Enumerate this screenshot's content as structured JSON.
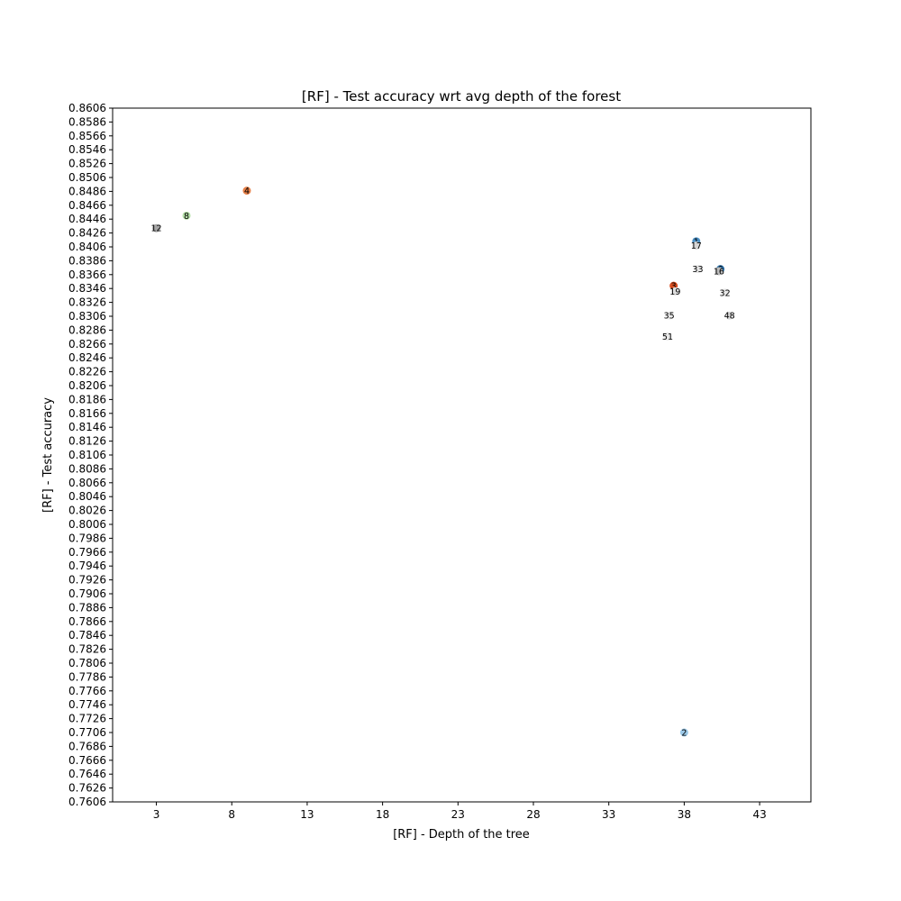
{
  "chart_data": {
    "type": "scatter",
    "title": "[RF] - Test accuracy wrt avg depth of the forest",
    "xlabel": "[RF] - Depth of the tree",
    "ylabel": "[RF] - Test accuracy",
    "xlim": [
      0.1,
      46.4
    ],
    "ylim": [
      0.7606,
      0.8606
    ],
    "xticks": [
      3,
      8,
      13,
      18,
      23,
      28,
      33,
      38,
      43
    ],
    "yticks": [
      0.7606,
      0.7626,
      0.7646,
      0.7666,
      0.7686,
      0.7706,
      0.7726,
      0.7746,
      0.7766,
      0.7786,
      0.7806,
      0.7826,
      0.7846,
      0.7866,
      0.7886,
      0.7906,
      0.7926,
      0.7946,
      0.7966,
      0.7986,
      0.8006,
      0.8026,
      0.8046,
      0.8066,
      0.8086,
      0.8106,
      0.8126,
      0.8146,
      0.8166,
      0.8186,
      0.8206,
      0.8226,
      0.8246,
      0.8266,
      0.8286,
      0.8306,
      0.8326,
      0.8346,
      0.8366,
      0.8386,
      0.8406,
      0.8426,
      0.8446,
      0.8466,
      0.8486,
      0.8506,
      0.8526,
      0.8546,
      0.8566,
      0.8586,
      0.8606
    ],
    "ytick_labels": [
      "0.7606",
      "0.7626",
      "0.7646",
      "0.7666",
      "0.7686",
      "0.7706",
      "0.7726",
      "0.7746",
      "0.7766",
      "0.7786",
      "0.7806",
      "0.7826",
      "0.7846",
      "0.7866",
      "0.7886",
      "0.7906",
      "0.7926",
      "0.7946",
      "0.7966",
      "0.7986",
      "0.8006",
      "0.8026",
      "0.8046",
      "0.8066",
      "0.8086",
      "0.8106",
      "0.8126",
      "0.8146",
      "0.8166",
      "0.8186",
      "0.8206",
      "0.8226",
      "0.8246",
      "0.8266",
      "0.8286",
      "0.8306",
      "0.8326",
      "0.8346",
      "0.8366",
      "0.8386",
      "0.8406",
      "0.8426",
      "0.8446",
      "0.8466",
      "0.8486",
      "0.8506",
      "0.8526",
      "0.8546",
      "0.8566",
      "0.8586",
      "0.8606"
    ],
    "grid": false,
    "points": [
      {
        "label": "1",
        "x": 38.8,
        "y": 0.8414,
        "color": "#4a8fc4"
      },
      {
        "label": "17",
        "x": 38.8,
        "y": 0.8408,
        "color": "#d6d6d6"
      },
      {
        "label": "4",
        "x": 9.0,
        "y": 0.8487,
        "color": "#e8824a"
      },
      {
        "label": "8",
        "x": 5.0,
        "y": 0.8451,
        "color": "#b5e0a8"
      },
      {
        "label": "12",
        "x": 3.0,
        "y": 0.8433,
        "color": "#a6a6a6"
      },
      {
        "label": "33",
        "x": 38.9,
        "y": 0.8374,
        "color": "#e6e6e6"
      },
      {
        "label": "6",
        "x": 40.4,
        "y": 0.8374,
        "color": "#2b6fa8"
      },
      {
        "label": "16",
        "x": 40.3,
        "y": 0.8371,
        "color": "#bcbcbc"
      },
      {
        "label": "3",
        "x": 37.3,
        "y": 0.835,
        "color": "#d94d1f"
      },
      {
        "label": "19",
        "x": 37.4,
        "y": 0.8342,
        "color": "#dedede"
      },
      {
        "label": "32",
        "x": 40.7,
        "y": 0.834,
        "color": "#e8e8e8"
      },
      {
        "label": "35",
        "x": 37.0,
        "y": 0.8307,
        "color": "#ececec"
      },
      {
        "label": "48",
        "x": 41.0,
        "y": 0.8307,
        "color": "#dcdcdc"
      },
      {
        "label": "51",
        "x": 36.9,
        "y": 0.8277,
        "color": "#e8e8e8"
      },
      {
        "label": "2",
        "x": 38.0,
        "y": 0.7706,
        "color": "#9cc9e8"
      }
    ]
  }
}
